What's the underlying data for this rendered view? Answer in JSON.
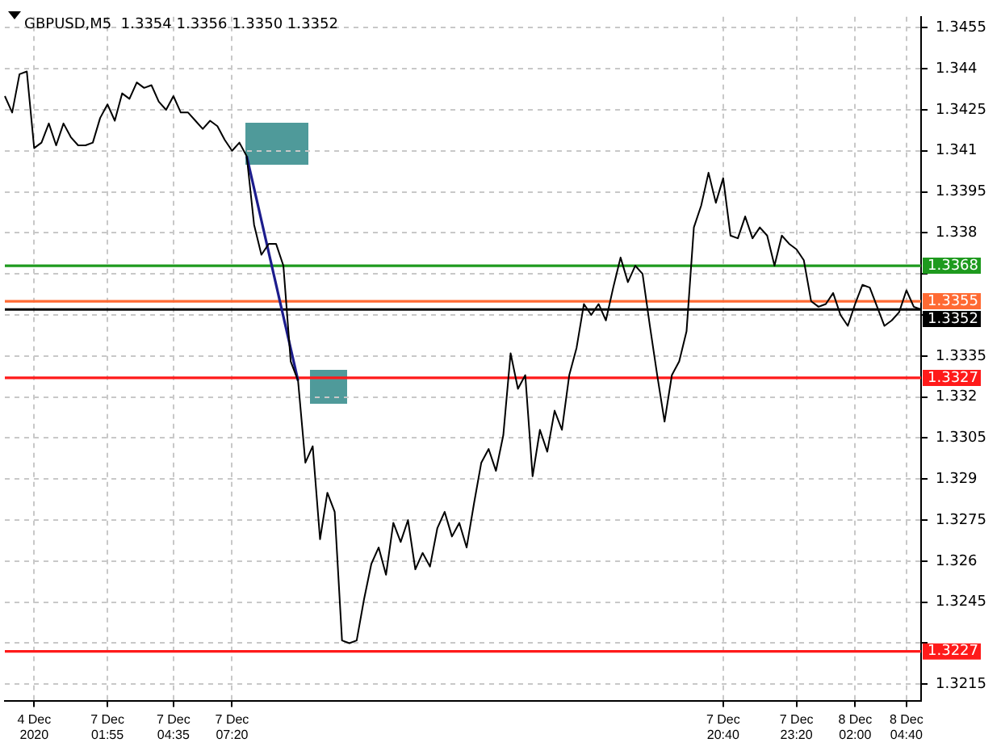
{
  "chart_data": {
    "type": "line",
    "title": "GBPUSD,M5  1.3354 1.3356 1.3350 1.3352",
    "categories": [
      null,
      null,
      null,
      null,
      "4 Dec 2020",
      null,
      null,
      null,
      null,
      null,
      null,
      null,
      null,
      null,
      "7 Dec 01:55",
      null,
      null,
      null,
      null,
      null,
      null,
      null,
      null,
      "7 Dec 04:35",
      null,
      null,
      null,
      null,
      null,
      null,
      null,
      "7 Dec 07:20",
      null,
      null,
      null,
      null,
      null,
      null,
      null,
      null,
      null,
      null,
      null,
      null,
      null,
      null,
      null,
      null,
      null,
      null,
      null,
      null,
      null,
      null,
      null,
      null,
      null,
      null,
      null,
      null,
      null,
      null,
      null,
      null,
      null,
      null,
      null,
      null,
      null,
      null,
      null,
      null,
      null,
      null,
      null,
      null,
      null,
      null,
      null,
      null,
      null,
      null,
      null,
      null,
      null,
      null,
      null,
      null,
      null,
      null,
      null,
      null,
      null,
      null,
      null,
      null,
      null,
      null,
      "7 Dec 20:40",
      null,
      null,
      null,
      null,
      null,
      null,
      null,
      null,
      null,
      "7 Dec 23:20",
      null,
      null,
      null,
      null,
      null,
      null,
      null,
      "8 Dec 02:00",
      null,
      null,
      null,
      null,
      null,
      null,
      "8 Dec 04:40",
      null,
      null
    ],
    "ylim": [
      1.3209,
      1.3459
    ],
    "yticks": [
      1.3215,
      {
        "value": 1.323,
        "label": null
      },
      1.3245,
      1.326,
      1.3275,
      1.329,
      1.3305,
      1.332,
      1.3335,
      {
        "value": 1.335,
        "label": null
      },
      {
        "value": 1.3365,
        "label": null
      },
      1.338,
      1.3395,
      1.341,
      1.3425,
      1.344,
      1.3455
    ],
    "grid": true,
    "legend": false,
    "marker": "none",
    "line_style": "solid",
    "series": [
      {
        "color": "#000000",
        "values": [
          1.343,
          1.3424,
          1.3438,
          1.3439,
          1.3411,
          1.3413,
          1.342,
          1.3412,
          1.342,
          1.3415,
          1.3412,
          1.3412,
          1.3413,
          1.3422,
          1.3427,
          1.3421,
          1.3431,
          1.3429,
          1.3435,
          1.3433,
          1.3434,
          1.3428,
          1.3425,
          1.343,
          1.3424,
          1.3424,
          1.3421,
          1.3418,
          1.3421,
          1.3419,
          1.3414,
          1.341,
          1.3413,
          1.3408,
          1.3383,
          1.3372,
          1.3376,
          1.3376,
          1.3368,
          1.3333,
          1.3326,
          1.3296,
          1.3302,
          1.3268,
          1.3285,
          1.3278,
          1.3231,
          1.323,
          1.3231,
          1.3246,
          1.3259,
          1.3265,
          1.3255,
          1.3274,
          1.3267,
          1.3275,
          1.3257,
          1.3263,
          1.3258,
          1.3272,
          1.3278,
          1.3269,
          1.3274,
          1.3265,
          1.3281,
          1.3296,
          1.3301,
          1.3293,
          1.3306,
          1.3336,
          1.3323,
          1.3328,
          1.3291,
          1.3308,
          1.33,
          1.3315,
          1.3308,
          1.3328,
          1.3338,
          1.3354,
          1.335,
          1.3354,
          1.3348,
          1.336,
          1.3371,
          1.3362,
          1.3368,
          1.3365,
          1.3346,
          1.3328,
          1.3311,
          1.3328,
          1.3333,
          1.3344,
          1.3382,
          1.339,
          1.3402,
          1.3391,
          1.34,
          1.3379,
          1.3378,
          1.3386,
          1.3378,
          1.3382,
          1.3379,
          1.3368,
          1.3379,
          1.3376,
          1.3374,
          1.337,
          1.3355,
          1.3353,
          1.3354,
          1.3358,
          1.335,
          1.3346,
          1.3354,
          1.3361,
          1.336,
          1.3353,
          1.3346,
          1.3348,
          1.3351,
          1.3359,
          1.3353,
          1.3352
        ]
      },
      {
        "type": "line",
        "color": "#1c1c8c",
        "values": [
          null,
          null,
          null,
          null,
          null,
          null,
          null,
          null,
          null,
          null,
          null,
          null,
          null,
          null,
          null,
          null,
          null,
          null,
          null,
          null,
          null,
          null,
          null,
          null,
          null,
          null,
          null,
          null,
          null,
          null,
          null,
          null,
          null,
          1.3408,
          null,
          null,
          null,
          null,
          null,
          null,
          1.3326,
          null,
          null,
          null,
          null,
          null,
          null,
          null,
          null,
          null,
          null,
          null,
          null,
          null,
          null,
          null,
          null,
          null,
          null,
          null,
          null,
          null,
          null,
          null,
          null,
          null,
          null,
          null,
          null,
          null,
          null,
          null,
          null,
          null,
          null,
          null,
          null,
          null,
          null,
          null,
          null,
          null,
          null,
          null,
          null,
          null,
          null,
          null,
          null,
          null,
          null,
          null,
          null,
          null,
          null,
          null,
          null,
          null,
          null,
          null,
          null,
          null,
          null,
          null,
          null,
          null,
          null,
          null,
          null,
          null,
          null,
          null,
          null,
          null,
          null,
          null,
          null,
          null,
          null,
          null,
          null,
          null,
          null,
          null,
          null,
          null
        ]
      }
    ],
    "ref_lines": [
      {
        "axis": "y",
        "value": 1.3368,
        "label": "1.3368",
        "color": "#1e9a1e"
      },
      {
        "axis": "y",
        "value": 1.3355,
        "label": "1.3355",
        "color": "#ff6a33"
      },
      {
        "axis": "y",
        "value": 1.3352,
        "label": "1.3352",
        "color": "#000000"
      },
      {
        "axis": "y",
        "value": 1.3327,
        "label": "1.3327",
        "color": "#ff1a1a"
      },
      {
        "axis": "y",
        "value": 1.3227,
        "label": "1.3227",
        "color": "#ff1a1a"
      }
    ]
  }
}
